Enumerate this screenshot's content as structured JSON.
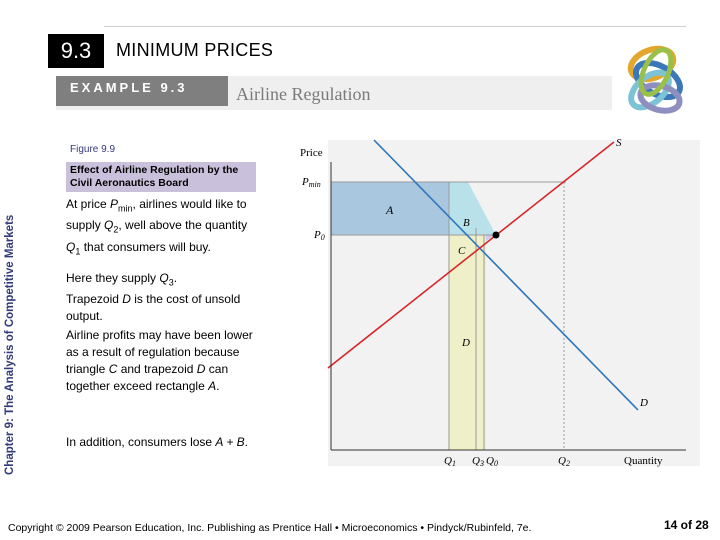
{
  "header": {
    "section_number": "9.3",
    "section_title": "MINIMUM PRICES",
    "example_label": "EXAMPLE 9.3",
    "example_title": "Airline Regulation"
  },
  "side_label": "Chapter 9: The Analysis of Competitive Markets",
  "figure": {
    "label": "Figure 9.9",
    "caption": "Effect of Airline Regulation by the Civil Aeronautics Board"
  },
  "paragraphs": {
    "p1_a": "At price ",
    "p1_var": "P",
    "p1_sub": "min",
    "p1_b": ", airlines would like to supply ",
    "p1_q": "Q",
    "p1_q_sub": "2",
    "p1_c": ", well above the quantity ",
    "p1_q1": "Q",
    "p1_q1_sub": "1",
    "p1_d": " that consumers will buy.",
    "p2_a": "Here they supply ",
    "p2_q": "Q",
    "p2_q_sub": "3",
    "p2_b": ".",
    "p2_c": "Trapezoid ",
    "p2_d_var": "D",
    "p2_e": " is the cost of unsold output.",
    "p3_a": "Airline profits may have been lower as a result of regulation because triangle ",
    "p3_c": "C",
    "p3_b": " and trapezoid ",
    "p3_d": "D",
    "p3_e": " can together exceed rectangle ",
    "p3_a_var": "A",
    "p3_f": ".",
    "p4_a": "In addition, consumers lose ",
    "p4_var": "A + B",
    "p4_b": "."
  },
  "graph": {
    "y_axis_label": "Price",
    "x_axis_label": "Quantity",
    "price_labels": {
      "pmin": "Pmin",
      "p0": "P0"
    },
    "quantity_labels": {
      "q1": "Q1",
      "q3": "Q3",
      "q0": "Q0",
      "q2": "Q2"
    },
    "curve_labels": {
      "supply": "S",
      "demand": "D"
    },
    "area_labels": {
      "a": "A",
      "b": "B",
      "c": "C",
      "d": "D"
    },
    "colors": {
      "area_a": "#a9c7de",
      "area_b": "#b9e1ea",
      "area_c": "#cfc9e8",
      "area_d": "#f0f0c8",
      "supply": "#d8262a",
      "demand": "#2f77bd"
    }
  },
  "footer": "Copyright © 2009 Pearson Education, Inc. Publishing as Prentice Hall • Microeconomics • Pindyck/Rubinfeld, 7e.",
  "page_number": "14 of 28"
}
